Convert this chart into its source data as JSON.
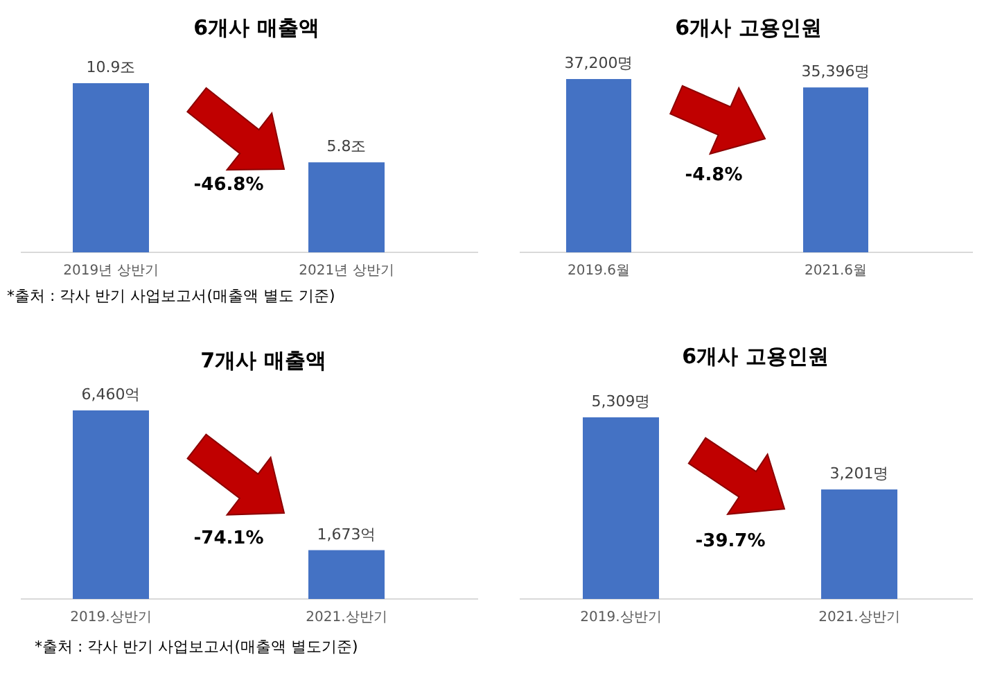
{
  "chart_data": [
    {
      "type": "bar",
      "title": "6개사 매출액",
      "categories": [
        "2019년 상반기",
        "2021년 상반기"
      ],
      "values": [
        10.9,
        5.8
      ],
      "value_labels": [
        "10.9조",
        "5.8조"
      ],
      "color": "#4472c4",
      "annotations": [
        "-46.8%",
        "*출처 : 각사 반기 사업보고서(매출액 별도 기준)"
      ]
    },
    {
      "type": "bar",
      "title": "6개사 고용인원",
      "categories": [
        "2019.6월",
        "2021.6월"
      ],
      "values": [
        37200,
        35396
      ],
      "value_labels": [
        "37,200명",
        "35,396명"
      ],
      "color": "#4472c4",
      "annotations": [
        "-4.8%"
      ]
    },
    {
      "type": "bar",
      "title": "7개사 매출액",
      "categories": [
        "2019.상반기",
        "2021.상반기"
      ],
      "values": [
        6460,
        1673
      ],
      "value_labels": [
        "6,460억",
        "1,673억"
      ],
      "color": "#4472c4",
      "annotations": [
        "-74.1%",
        "*출처 : 각사 반기 사업보고서(매출액 별도기준)"
      ]
    },
    {
      "type": "bar",
      "title": "6개사 고용인원",
      "categories": [
        "2019.상반기",
        "2021.상반기"
      ],
      "values": [
        5309,
        3201
      ],
      "value_labels": [
        "5,309명",
        "3,201명"
      ],
      "color": "#4472c4",
      "annotations": [
        "-39.7%"
      ]
    }
  ]
}
